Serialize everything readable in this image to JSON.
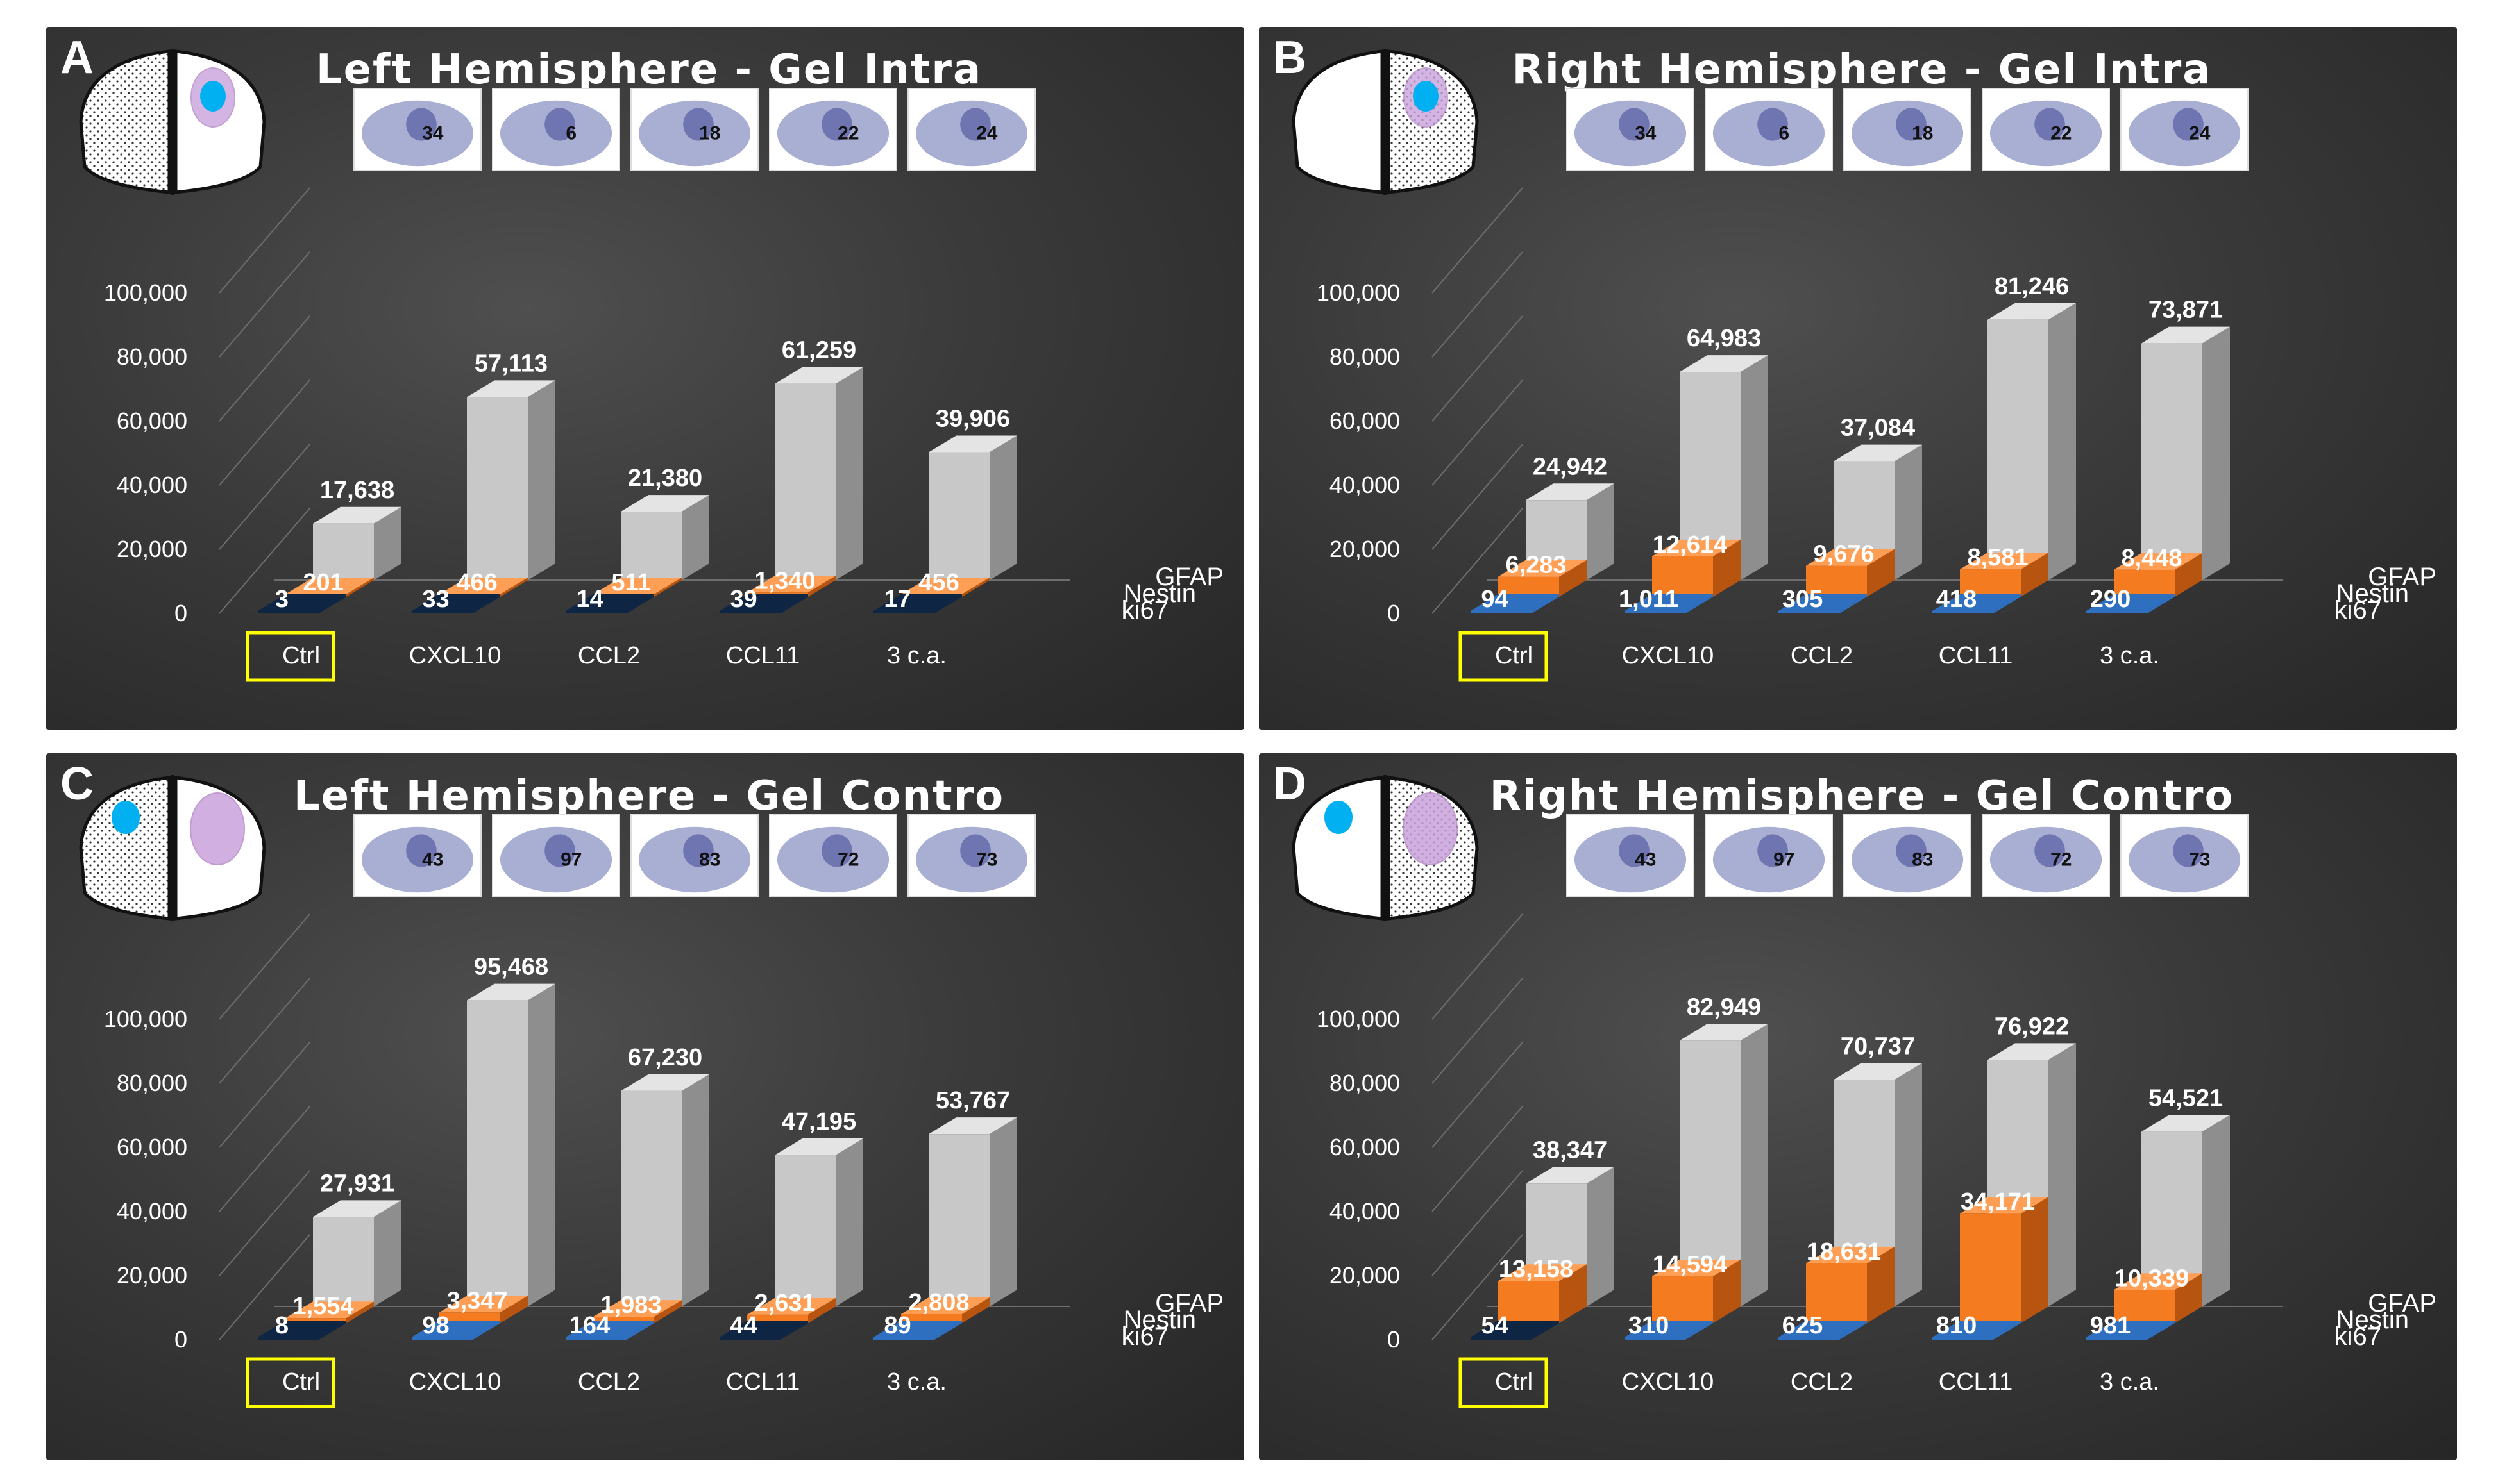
{
  "series_names": [
    "GFAP",
    "Nestin",
    "ki67"
  ],
  "colors": {
    "gfap_front": "#c8c8c8",
    "gfap_side": "#8e8e8e",
    "gfap_top": "#e4e4e4",
    "nestin_front": "#f47b20",
    "nestin_side": "#b65410",
    "nestin_top": "#ff9f55",
    "ki67_light": "#2e6fc0",
    "ki67_dark": "#0e2544",
    "ctrl_box": "#ffff00",
    "blue_dot": "#00b0f0",
    "purple_blob": "#c9a2dc"
  },
  "panels": [
    {
      "letter": "A",
      "title": "Left Hemisphere  - Gel Intra",
      "thumbs": [
        "34",
        "6",
        "18",
        "22",
        "24"
      ],
      "brain": "left-gel-intra",
      "chart_data": {
        "type": "bar",
        "title": "Left Hemisphere  - Gel Intra",
        "categories": [
          "Ctrl",
          "CXCL10",
          "CCL2",
          "CCL11",
          "3 c.a."
        ],
        "yticks": [
          "0",
          "20,000",
          "40,000",
          "60,000",
          "80,000",
          "100,000"
        ],
        "ylim": [
          0,
          100000
        ],
        "highlighted_category": "Ctrl",
        "series": [
          {
            "name": "GFAP",
            "values": [
              17638,
              57113,
              21380,
              61259,
              39906
            ],
            "labels": [
              "17,638",
              "57,113",
              "21,380",
              "61,259",
              "39,906"
            ]
          },
          {
            "name": "Nestin",
            "values": [
              201,
              466,
              511,
              1340,
              456
            ],
            "labels": [
              "201",
              "466",
              "511",
              "1,340",
              "456"
            ]
          },
          {
            "name": "ki67",
            "values": [
              3,
              33,
              14,
              39,
              17
            ],
            "labels": [
              "3",
              "33",
              "14",
              "39",
              "17"
            ],
            "shade": [
              "dark",
              "dark",
              "dark",
              "dark",
              "dark"
            ]
          }
        ]
      }
    },
    {
      "letter": "B",
      "title": "Right Hemisphere  - Gel Intra",
      "thumbs": [
        "34",
        "6",
        "18",
        "22",
        "24"
      ],
      "brain": "right-gel-intra",
      "chart_data": {
        "type": "bar",
        "title": "Right Hemisphere  - Gel Intra",
        "categories": [
          "Ctrl",
          "CXCL10",
          "CCL2",
          "CCL11",
          "3 c.a."
        ],
        "yticks": [
          "0",
          "20,000",
          "40,000",
          "60,000",
          "80,000",
          "100,000"
        ],
        "ylim": [
          0,
          100000
        ],
        "highlighted_category": "Ctrl",
        "series": [
          {
            "name": "GFAP",
            "values": [
              24942,
              64983,
              37084,
              81246,
              73871
            ],
            "labels": [
              "24,942",
              "64,983",
              "37,084",
              "81,246",
              "73,871"
            ]
          },
          {
            "name": "Nestin",
            "values": [
              6283,
              12614,
              9676,
              8581,
              8448
            ],
            "labels": [
              "6,283",
              "12,614",
              "9,676",
              "8,581",
              "8,448"
            ]
          },
          {
            "name": "ki67",
            "values": [
              94,
              1011,
              305,
              418,
              290
            ],
            "labels": [
              "94",
              "1,011",
              "305",
              "418",
              "290"
            ],
            "shade": [
              "light",
              "light",
              "light",
              "light",
              "light"
            ]
          }
        ]
      }
    },
    {
      "letter": "C",
      "title": "Left Hemisphere - Gel Contro",
      "thumbs": [
        "43",
        "97",
        "83",
        "72",
        "73"
      ],
      "brain": "left-gel-contro",
      "chart_data": {
        "type": "bar",
        "title": "Left Hemisphere - Gel Contro",
        "categories": [
          "Ctrl",
          "CXCL10",
          "CCL2",
          "CCL11",
          "3 c.a."
        ],
        "yticks": [
          "0",
          "20,000",
          "40,000",
          "60,000",
          "80,000",
          "100,000"
        ],
        "ylim": [
          0,
          100000
        ],
        "highlighted_category": "Ctrl",
        "series": [
          {
            "name": "GFAP",
            "values": [
              27931,
              95468,
              67230,
              47195,
              53767
            ],
            "labels": [
              "27,931",
              "95,468",
              "67,230",
              "47,195",
              "53,767"
            ]
          },
          {
            "name": "Nestin",
            "values": [
              1554,
              3347,
              1983,
              2631,
              2808
            ],
            "labels": [
              "1,554",
              "3,347",
              "1,983",
              "2,631",
              "2,808"
            ]
          },
          {
            "name": "ki67",
            "values": [
              8,
              98,
              164,
              44,
              89
            ],
            "labels": [
              "8",
              "98",
              "164",
              "44",
              "89"
            ],
            "shade": [
              "dark",
              "light",
              "light",
              "dark",
              "light"
            ]
          }
        ]
      }
    },
    {
      "letter": "D",
      "title": "Right Hemisphere  - Gel Contro",
      "thumbs": [
        "43",
        "97",
        "83",
        "72",
        "73"
      ],
      "brain": "right-gel-contro",
      "chart_data": {
        "type": "bar",
        "title": "Right Hemisphere  - Gel Contro",
        "categories": [
          "Ctrl",
          "CXCL10",
          "CCL2",
          "CCL11",
          "3 c.a."
        ],
        "yticks": [
          "0",
          "20,000",
          "40,000",
          "60,000",
          "80,000",
          "100,000"
        ],
        "ylim": [
          0,
          100000
        ],
        "highlighted_category": "Ctrl",
        "series": [
          {
            "name": "GFAP",
            "values": [
              38347,
              82949,
              70737,
              76922,
              54521
            ],
            "labels": [
              "38,347",
              "82,949",
              "70,737",
              "76,922",
              "54,521"
            ]
          },
          {
            "name": "Nestin",
            "values": [
              13158,
              14594,
              18631,
              34171,
              10339
            ],
            "labels": [
              "13,158",
              "14,594",
              "18,631",
              "34,171",
              "10,339"
            ]
          },
          {
            "name": "ki67",
            "values": [
              54,
              310,
              625,
              810,
              981
            ],
            "labels": [
              "54",
              "310",
              "625",
              "810",
              "981"
            ],
            "shade": [
              "dark",
              "light",
              "light",
              "light",
              "light"
            ]
          }
        ]
      }
    }
  ]
}
